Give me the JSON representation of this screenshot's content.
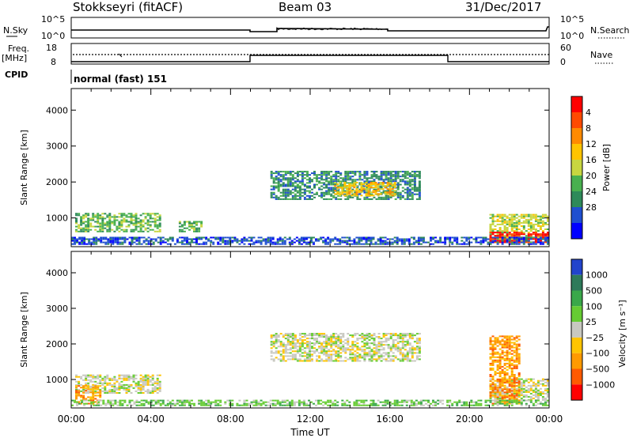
{
  "header": {
    "title": "Stokkseyri (fitACF)",
    "beam": "Beam 03",
    "date": "31/Dec/2017"
  },
  "top_panels": {
    "nsky_label": "N.Sky",
    "nsky_tick_top": "10^5",
    "nsky_tick_bottom": "10^0",
    "nsearch_label": "N.Search",
    "nsearch_tick_top": "10^5",
    "nsearch_tick_bottom": "10^0",
    "freq_label": "Freq.",
    "freq_unit": "[MHz]",
    "freq_tick_top": "18",
    "freq_tick_bottom": "8",
    "nave_label": "Nave",
    "nave_tick_top": "60",
    "nave_tick_bottom": "0",
    "cpid_label": "CPID",
    "cpid_value": "normal (fast) 151"
  },
  "chart_data": [
    {
      "type": "heatmap",
      "name": "power",
      "ylabel": "Slant Range [km]",
      "yticks": [
        "1000",
        "2000",
        "3000",
        "4000"
      ],
      "ylim": [
        200,
        4600
      ],
      "xlim": [
        0,
        24
      ],
      "colorbar_label": "Power [dB]",
      "colorbar_ticks": [
        "4",
        "8",
        "12",
        "16",
        "20",
        "24",
        "28"
      ],
      "colorbar_colors": [
        "#0000ff",
        "#1f4fd0",
        "#2e8a5a",
        "#49b04f",
        "#c8d640",
        "#ffc400",
        "#ff8a00",
        "#ff4a00",
        "#ff0000"
      ],
      "echo_regions": [
        {
          "t0": 0.2,
          "t1": 4.5,
          "r0": 600,
          "r1": 1100,
          "level": 3
        },
        {
          "t0": 5.4,
          "t1": 6.5,
          "r0": 600,
          "r1": 900,
          "level": 3
        },
        {
          "t0": 10.0,
          "t1": 17.5,
          "r0": 1500,
          "r1": 2300,
          "level": 2
        },
        {
          "t0": 13.2,
          "t1": 16.2,
          "r0": 1600,
          "r1": 2000,
          "level": 5
        },
        {
          "t0": 21.0,
          "t1": 24.0,
          "r0": 300,
          "r1": 1100,
          "level": 4
        },
        {
          "t0": 21.0,
          "t1": 24.0,
          "r0": 300,
          "r1": 600,
          "level": 8
        },
        {
          "t0": 0.0,
          "t1": 24.0,
          "r0": 250,
          "r1": 450,
          "level": 1
        }
      ]
    },
    {
      "type": "heatmap",
      "name": "velocity",
      "ylabel": "Slant Range [km]",
      "yticks": [
        "1000",
        "2000",
        "3000",
        "4000"
      ],
      "ylim": [
        200,
        4600
      ],
      "xlim": [
        0,
        24
      ],
      "xlabel": "Time UT",
      "xticks": [
        "00:00",
        "04:00",
        "08:00",
        "12:00",
        "16:00",
        "20:00",
        "00:00"
      ],
      "colorbar_label": "Velocity [m s⁻¹]",
      "colorbar_ticks": [
        "1000",
        "500",
        "100",
        "25",
        "−25",
        "−100",
        "−500",
        "−1000"
      ],
      "colorbar_colors": [
        "#2244cc",
        "#2e7a5a",
        "#3aa84a",
        "#66cc33",
        "#c8c8c0",
        "#ffc400",
        "#ff9a00",
        "#ff5a00",
        "#ff0000"
      ],
      "echo_regions": [
        {
          "t0": 0.2,
          "t1": 4.5,
          "r0": 600,
          "r1": 1100,
          "color": 4
        },
        {
          "t0": 0.2,
          "t1": 1.5,
          "r0": 300,
          "r1": 800,
          "color": 6
        },
        {
          "t0": 10.0,
          "t1": 17.5,
          "r0": 1500,
          "r1": 2300,
          "color": 4
        },
        {
          "t0": 21.0,
          "t1": 24.0,
          "r0": 400,
          "r1": 1000,
          "color": 4
        },
        {
          "t0": 21.0,
          "t1": 22.5,
          "r0": 300,
          "r1": 2200,
          "color": 6
        },
        {
          "t0": 0.0,
          "t1": 24.0,
          "r0": 250,
          "r1": 400,
          "color": 3
        }
      ]
    }
  ]
}
